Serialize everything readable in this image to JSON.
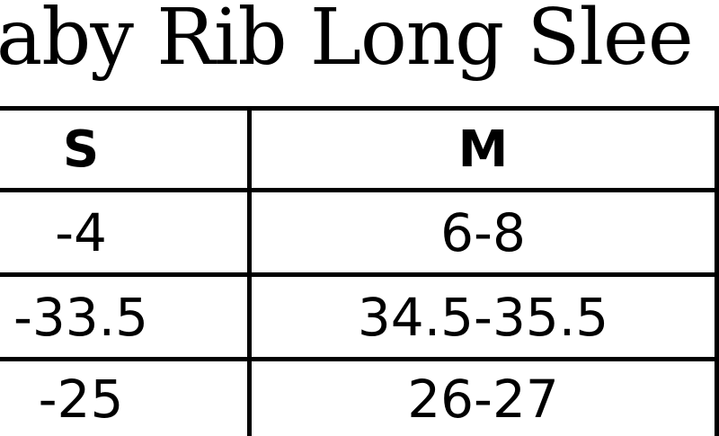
{
  "title": "aby Rib Long Slee",
  "table": {
    "headers": [
      "S",
      "M"
    ],
    "rows": [
      [
        "-4",
        "6-8"
      ],
      [
        "-33.5",
        "34.5-35.5"
      ],
      [
        "-25",
        "26-27"
      ]
    ]
  }
}
